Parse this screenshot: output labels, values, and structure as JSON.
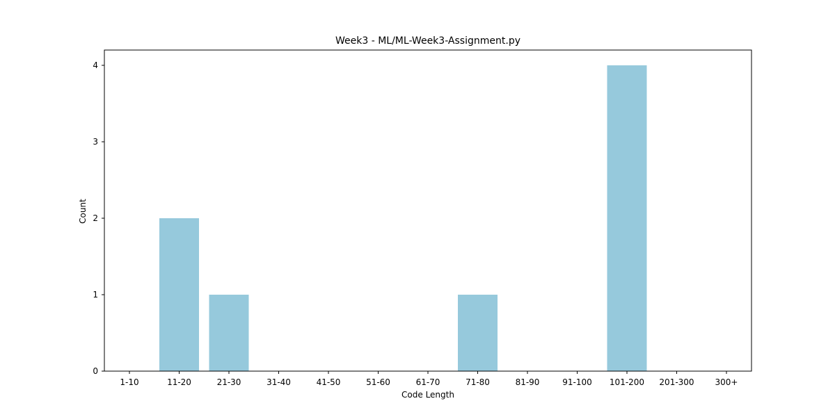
{
  "chart_data": {
    "type": "bar",
    "title": "Week3 - ML/ML-Week3-Assignment.py",
    "xlabel": "Code Length",
    "ylabel": "Count",
    "categories": [
      "1-10",
      "11-20",
      "21-30",
      "31-40",
      "41-50",
      "51-60",
      "61-70",
      "71-80",
      "81-90",
      "91-100",
      "101-200",
      "201-300",
      "300+"
    ],
    "values": [
      0,
      2,
      1,
      0,
      0,
      0,
      0,
      1,
      0,
      0,
      4,
      0,
      0
    ],
    "ylim": [
      0,
      4.2
    ],
    "yticks": [
      0,
      1,
      2,
      3,
      4
    ],
    "grid": false,
    "legend": "none",
    "colors": {
      "bar": "#96c9dc",
      "axis": "#000000",
      "background": "#ffffff"
    }
  }
}
